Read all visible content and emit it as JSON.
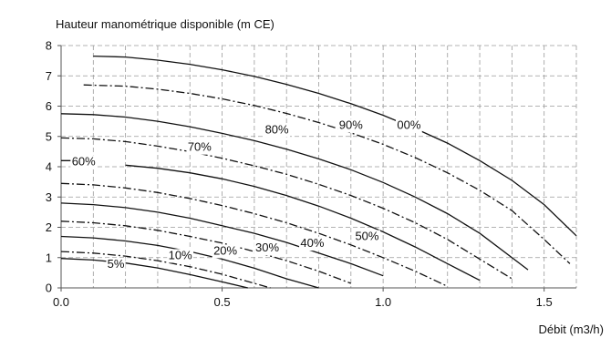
{
  "chart_data": {
    "type": "line",
    "title": "",
    "ylabel": "Hauteur manométrique disponible (m CE)",
    "xlabel": "Débit (m3/h)",
    "xlim": [
      0,
      1.6
    ],
    "ylim": [
      0,
      8
    ],
    "xticks": [
      0,
      0.5,
      1.0,
      1.5
    ],
    "xtick_labels": [
      "0.0",
      "0.5",
      "1.0",
      "1.5"
    ],
    "yticks": [
      0,
      1,
      2,
      3,
      4,
      5,
      6,
      7,
      8
    ],
    "ytick_labels": [
      "0",
      "1",
      "2",
      "3",
      "4",
      "5",
      "6",
      "7",
      "8"
    ],
    "grid": "dashed",
    "series": [
      {
        "name": "5%",
        "style": "solid",
        "x": [
          0,
          0.1,
          0.2,
          0.3,
          0.4,
          0.5,
          0.58
        ],
        "y": [
          0.97,
          0.92,
          0.82,
          0.66,
          0.44,
          0.2,
          0.0
        ],
        "label_at": [
          0.17,
          0.66
        ]
      },
      {
        "name": "10%",
        "style": "dashdot",
        "x": [
          0,
          0.1,
          0.2,
          0.3,
          0.4,
          0.5,
          0.6,
          0.65
        ],
        "y": [
          1.2,
          1.15,
          1.05,
          0.9,
          0.7,
          0.45,
          0.15,
          0.0
        ],
        "label_at": [
          0.37,
          0.95
        ]
      },
      {
        "name": "20%",
        "style": "solid",
        "x": [
          0,
          0.1,
          0.2,
          0.3,
          0.4,
          0.5,
          0.6,
          0.7,
          0.8
        ],
        "y": [
          1.7,
          1.65,
          1.55,
          1.4,
          1.2,
          0.95,
          0.65,
          0.3,
          0.0
        ],
        "label_at": [
          0.51,
          1.1
        ]
      },
      {
        "name": "30%",
        "style": "dashdot",
        "x": [
          0,
          0.1,
          0.2,
          0.3,
          0.4,
          0.5,
          0.6,
          0.7,
          0.8,
          0.9
        ],
        "y": [
          2.2,
          2.15,
          2.05,
          1.9,
          1.7,
          1.48,
          1.2,
          0.9,
          0.55,
          0.15
        ]
      },
      {
        "name": "",
        "style": "solid",
        "x": [
          0,
          0.1,
          0.2,
          0.3,
          0.4,
          0.5,
          0.6,
          0.7,
          0.8,
          0.9,
          1.0
        ],
        "y": [
          2.8,
          2.75,
          2.65,
          2.5,
          2.3,
          2.05,
          1.8,
          1.5,
          1.15,
          0.8,
          0.4
        ],
        "label_at": [
          0.64,
          1.2
        ],
        "label_text": "30%"
      },
      {
        "name": "40%",
        "style": "dashdot",
        "x": [
          0,
          0.1,
          0.2,
          0.3,
          0.4,
          0.5,
          0.6,
          0.7,
          0.8,
          0.9,
          1.0,
          1.1,
          1.2
        ],
        "y": [
          3.45,
          3.4,
          3.3,
          3.15,
          2.95,
          2.72,
          2.45,
          2.15,
          1.8,
          1.42,
          1.0,
          0.55,
          0.05
        ],
        "label_at": [
          0.78,
          1.35
        ]
      },
      {
        "name": "50%",
        "style": "solid",
        "x": [
          0.2,
          0.3,
          0.4,
          0.5,
          0.6,
          0.7,
          0.8,
          0.9,
          1.0,
          1.1,
          1.2,
          1.3
        ],
        "y": [
          4.05,
          3.95,
          3.8,
          3.6,
          3.35,
          3.05,
          2.7,
          2.3,
          1.85,
          1.35,
          0.8,
          0.25
        ],
        "label_at": [
          0.95,
          1.58
        ]
      },
      {
        "name": "60%",
        "style": "solid",
        "x": [
          0,
          0.07
        ],
        "y": [
          4.2,
          4.2
        ],
        "label_at": [
          0.07,
          4.05
        ]
      },
      {
        "name": "70%",
        "style": "dashdot",
        "x": [
          0,
          0.1,
          0.2,
          0.3,
          0.4,
          0.5,
          0.6,
          0.7,
          0.8,
          0.9,
          1.0,
          1.1,
          1.2,
          1.3,
          1.4
        ],
        "y": [
          4.95,
          4.92,
          4.83,
          4.68,
          4.5,
          4.28,
          4.03,
          3.75,
          3.42,
          3.05,
          2.63,
          2.15,
          1.6,
          0.95,
          0.3
        ],
        "label_at": [
          0.43,
          4.52
        ]
      },
      {
        "name": "",
        "style": "solid",
        "x": [
          0,
          0.1,
          0.2,
          0.3,
          0.4,
          0.5,
          0.6,
          0.7,
          0.8,
          0.9,
          1.0,
          1.1,
          1.2,
          1.3,
          1.45
        ],
        "y": [
          5.75,
          5.72,
          5.64,
          5.5,
          5.32,
          5.1,
          4.86,
          4.58,
          4.26,
          3.9,
          3.48,
          3.0,
          2.45,
          1.8,
          0.6
        ]
      },
      {
        "name": "80%",
        "style": "dashdot",
        "x": [
          0.07,
          0.2,
          0.3,
          0.4,
          0.5,
          0.6,
          0.7,
          0.8,
          0.9,
          1.0,
          1.1,
          1.2,
          1.3,
          1.4,
          1.5,
          1.58
        ],
        "y": [
          6.7,
          6.66,
          6.56,
          6.42,
          6.24,
          6.02,
          5.76,
          5.46,
          5.12,
          4.74,
          4.3,
          3.8,
          3.22,
          2.55,
          1.6,
          0.8
        ],
        "label_at": [
          0.67,
          5.1
        ]
      },
      {
        "name": "90%",
        "style": "solid",
        "x": [
          0.1,
          0.2,
          0.3,
          0.4,
          0.5,
          0.6,
          0.7,
          0.8,
          0.9,
          1.0,
          1.1,
          1.2,
          1.3,
          1.4,
          1.5,
          1.6
        ],
        "y": [
          7.65,
          7.62,
          7.52,
          7.38,
          7.2,
          6.98,
          6.72,
          6.42,
          6.08,
          5.7,
          5.26,
          4.78,
          4.2,
          3.55,
          2.75,
          1.72
        ],
        "label_at": [
          0.9,
          5.25
        ]
      },
      {
        "name": "100%",
        "style": "none",
        "x": [],
        "y": [],
        "label_at": [
          1.08,
          5.25
        ],
        "label_text": "00%"
      }
    ]
  }
}
